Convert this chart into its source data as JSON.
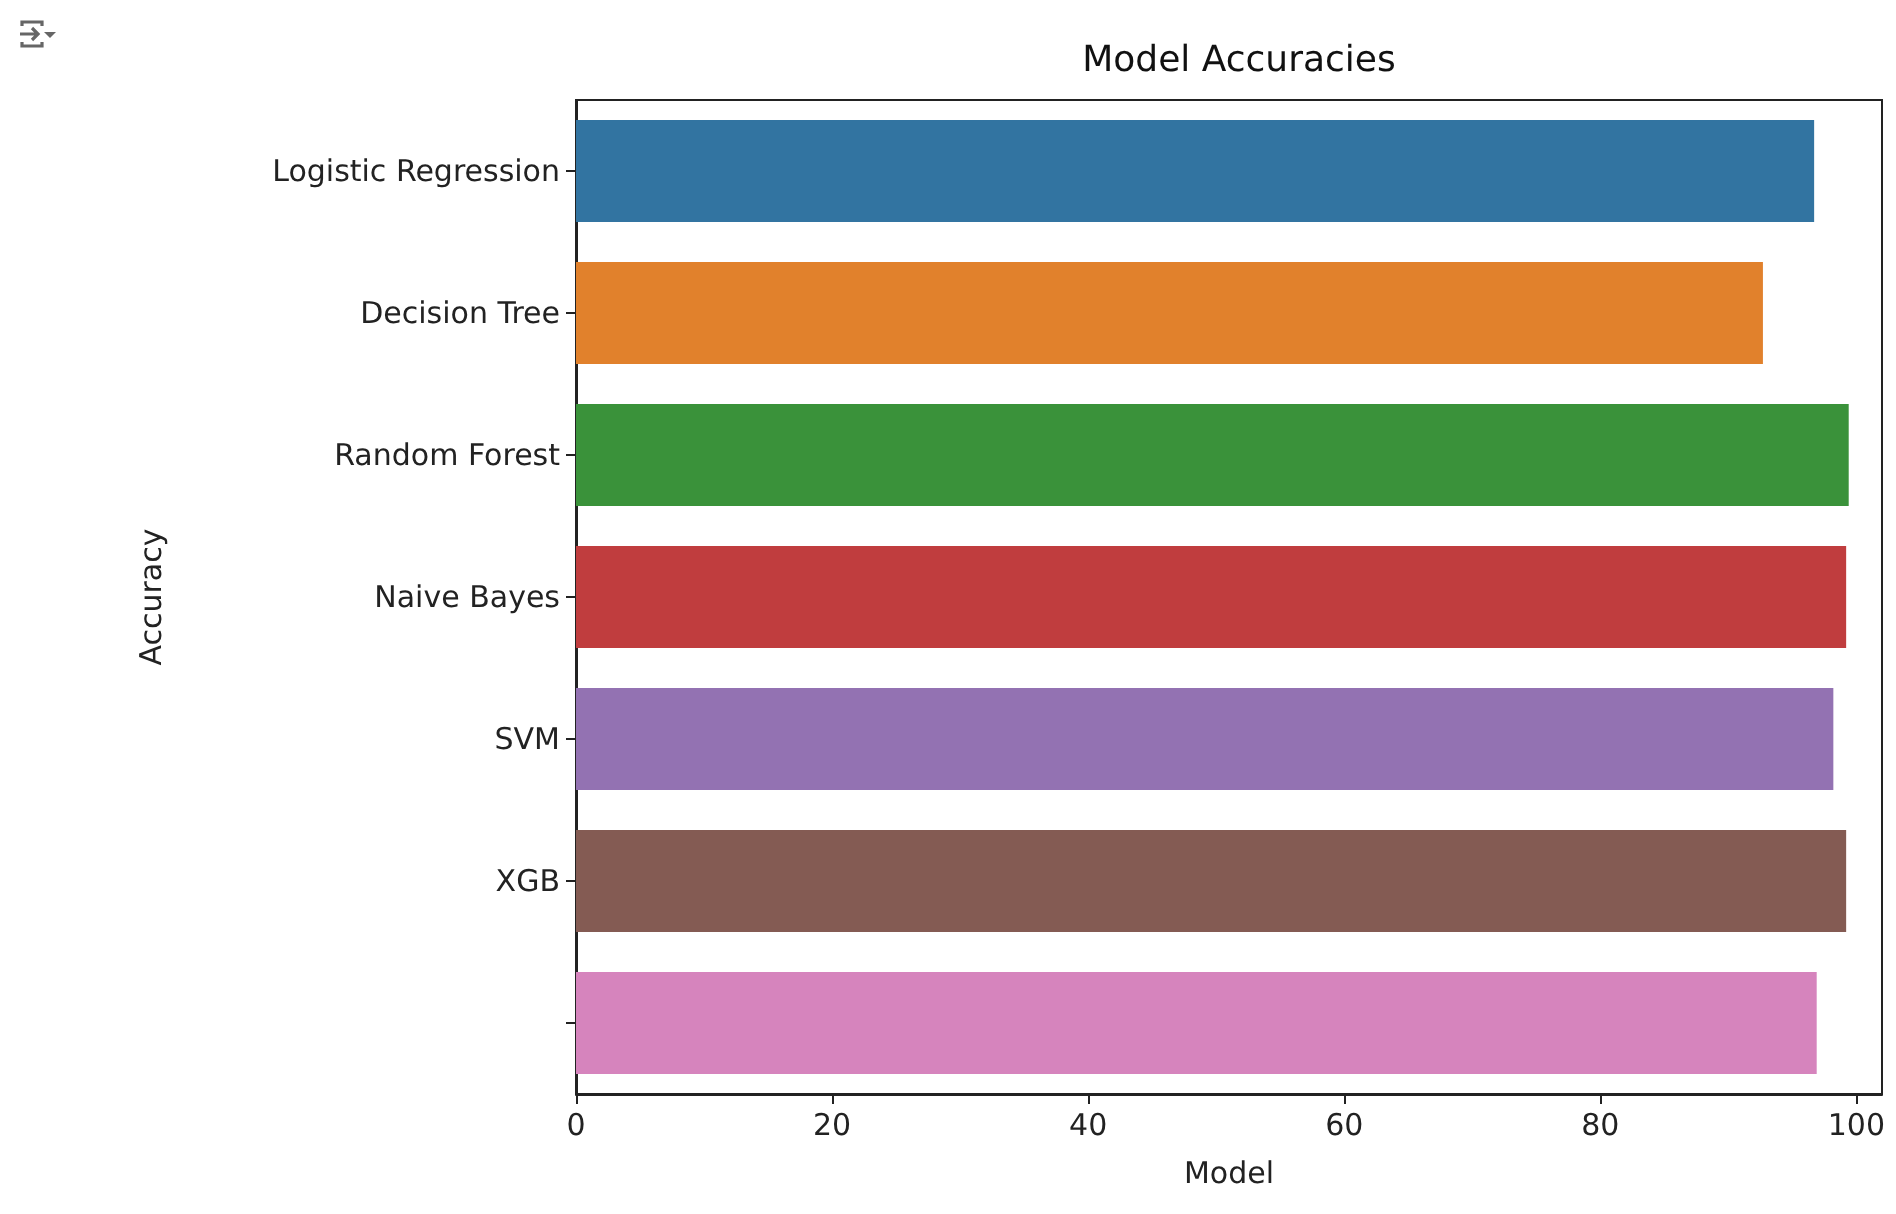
{
  "chart_data": {
    "type": "bar",
    "orientation": "horizontal",
    "title": "Model Accuracies",
    "xlabel": "Model",
    "ylabel": "Accuracy",
    "categories": [
      "Logistic Regression",
      "Decision Tree",
      "Random Forest",
      "Naive Bayes",
      "SVM",
      "XGB",
      null
    ],
    "values": [
      96.7,
      92.7,
      99.4,
      99.2,
      98.2,
      99.2,
      96.9
    ],
    "colors": [
      "#3274a1",
      "#e1812c",
      "#3a923a",
      "#c03d3e",
      "#9372b2",
      "#845b53",
      "#d684bd"
    ],
    "xlim": [
      0,
      102
    ],
    "xticks": [
      0,
      20,
      40,
      60,
      80,
      100
    ],
    "grid": false
  }
}
